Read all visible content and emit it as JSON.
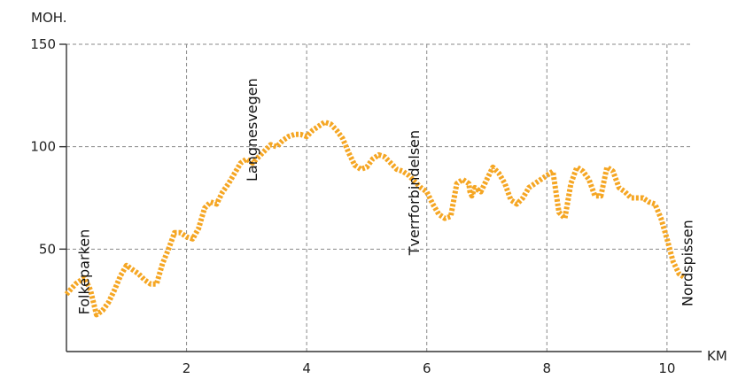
{
  "chart_data": {
    "type": "line",
    "title": "",
    "xlabel": "KM",
    "ylabel": "MOH.",
    "xlim": [
      0,
      10.4
    ],
    "ylim": [
      0,
      150
    ],
    "x_ticks": [
      2,
      4,
      6,
      8,
      10
    ],
    "y_ticks": [
      50,
      100,
      150
    ],
    "grid": true,
    "line_color": "#F5A623",
    "line_style": "dotted",
    "series": [
      {
        "x": [
          0.0,
          0.15,
          0.3,
          0.4,
          0.5,
          0.6,
          0.7,
          0.8,
          0.9,
          1.0,
          1.1,
          1.2,
          1.3,
          1.4,
          1.5,
          1.6,
          1.7,
          1.8,
          1.9,
          2.0,
          2.1,
          2.2,
          2.3,
          2.4,
          2.5,
          2.6,
          2.7,
          2.8,
          2.9,
          3.0,
          3.1,
          3.2,
          3.3,
          3.4,
          3.5,
          3.6,
          3.7,
          3.8,
          3.9,
          4.0,
          4.1,
          4.2,
          4.3,
          4.4,
          4.5,
          4.6,
          4.7,
          4.8,
          4.9,
          5.0,
          5.1,
          5.2,
          5.3,
          5.4,
          5.5,
          5.6,
          5.7,
          5.8,
          5.9,
          6.0,
          6.1,
          6.2,
          6.3,
          6.4,
          6.5,
          6.6,
          6.7,
          6.72,
          6.75,
          6.8,
          6.9,
          7.0,
          7.1,
          7.2,
          7.3,
          7.4,
          7.5,
          7.6,
          7.7,
          7.8,
          7.9,
          8.0,
          8.1,
          8.2,
          8.3,
          8.4,
          8.5,
          8.6,
          8.7,
          8.8,
          8.9,
          9.0,
          9.1,
          9.2,
          9.3,
          9.4,
          9.5,
          9.6,
          9.7,
          9.8,
          9.9,
          10.0,
          10.1,
          10.2,
          10.3
        ],
        "values": [
          28,
          33,
          36,
          30,
          18,
          20,
          24,
          30,
          37,
          42,
          40,
          38,
          35,
          33,
          33,
          43,
          50,
          58,
          58,
          56,
          55,
          60,
          70,
          73,
          72,
          78,
          82,
          87,
          92,
          94,
          92,
          95,
          98,
          101,
          100,
          103,
          105,
          106,
          106,
          105,
          108,
          110,
          112,
          111,
          108,
          104,
          97,
          91,
          89,
          90,
          94,
          96,
          95,
          92,
          89,
          88,
          86,
          83,
          80,
          78,
          72,
          67,
          65,
          66,
          82,
          84,
          82,
          78,
          76,
          80,
          78,
          84,
          90,
          87,
          82,
          74,
          72,
          75,
          80,
          82,
          84,
          86,
          88,
          68,
          65,
          82,
          90,
          88,
          84,
          76,
          76,
          90,
          88,
          80,
          78,
          75,
          75,
          75,
          73,
          72,
          65,
          55,
          44,
          38,
          36
        ]
      }
    ],
    "annotations": [
      {
        "text": "Folkeparken",
        "x": 0.3
      },
      {
        "text": "Langnesvegen",
        "x": 3.1
      },
      {
        "text": "Tverrforbindelsen",
        "x": 5.8
      },
      {
        "text": "Nordspissen",
        "x": 10.35
      }
    ]
  }
}
